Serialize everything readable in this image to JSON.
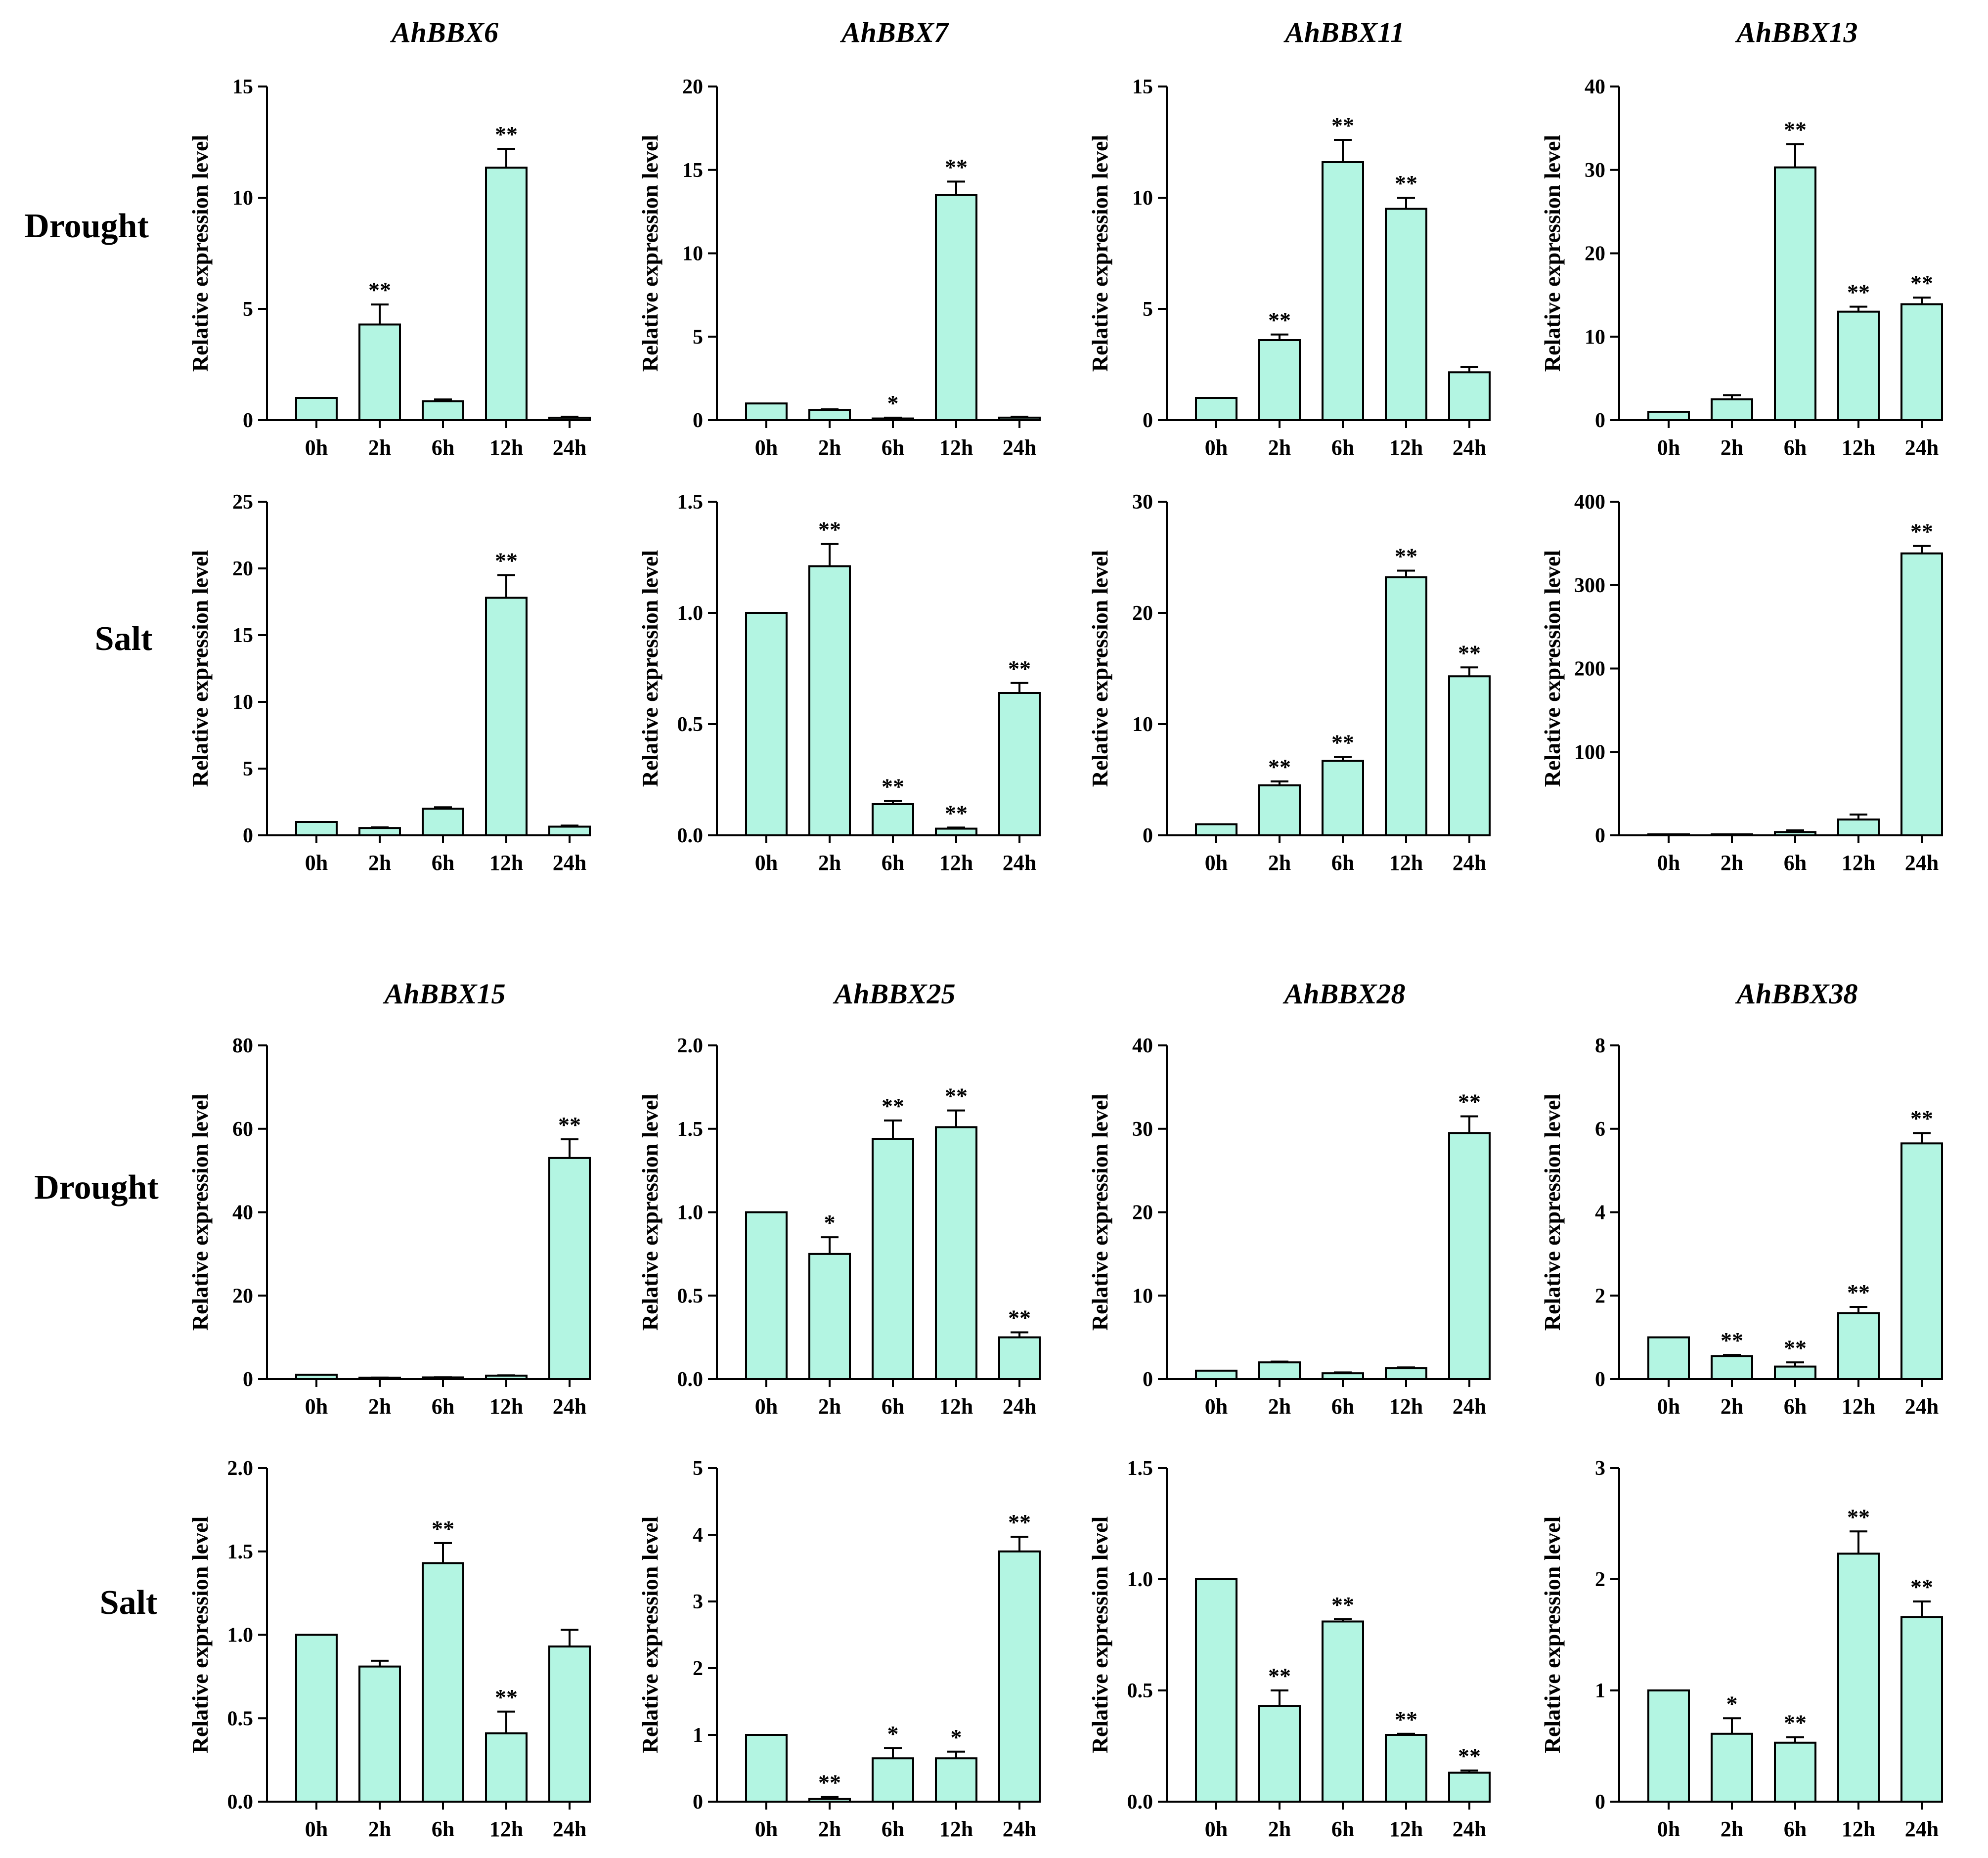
{
  "style": {
    "bar_color": "#b3f5e2",
    "ink_color": "#000000"
  },
  "conditions": [
    "Drought",
    "Salt"
  ],
  "chart_data": [
    {
      "type": "bar",
      "gene": "AhBBX6",
      "condition": "Drought",
      "ylabel": "Relative expression level",
      "categories": [
        "0h",
        "2h",
        "6h",
        "12h",
        "24h"
      ],
      "values": [
        1.0,
        4.3,
        0.85,
        11.35,
        0.1
      ],
      "errors": [
        0,
        0.9,
        0.08,
        0.85,
        0.05
      ],
      "significance": [
        "",
        "**",
        "",
        "**",
        ""
      ],
      "ylim": [
        0,
        15
      ],
      "yticks": [
        0,
        5,
        10,
        15
      ],
      "ytick_labels": [
        "0",
        "5",
        "10",
        "15"
      ]
    },
    {
      "type": "bar",
      "gene": "AhBBX7",
      "condition": "Drought",
      "ylabel": "Relative expression level",
      "categories": [
        "0h",
        "2h",
        "6h",
        "12h",
        "24h"
      ],
      "values": [
        1.0,
        0.6,
        0.1,
        13.5,
        0.15
      ],
      "errors": [
        0,
        0.05,
        0.05,
        0.8,
        0.05
      ],
      "significance": [
        "",
        "",
        "*",
        "**",
        ""
      ],
      "ylim": [
        0,
        20
      ],
      "yticks": [
        0,
        5,
        10,
        15,
        20
      ],
      "ytick_labels": [
        "0",
        "5",
        "10",
        "15",
        "20"
      ]
    },
    {
      "type": "bar",
      "gene": "AhBBX11",
      "condition": "Drought",
      "ylabel": "Relative expression level",
      "categories": [
        "0h",
        "2h",
        "6h",
        "12h",
        "24h"
      ],
      "values": [
        1.0,
        3.6,
        11.6,
        9.5,
        2.15
      ],
      "errors": [
        0,
        0.25,
        1.0,
        0.5,
        0.25
      ],
      "significance": [
        "",
        "**",
        "**",
        "**",
        ""
      ],
      "ylim": [
        0,
        15
      ],
      "yticks": [
        0,
        5,
        10,
        15
      ],
      "ytick_labels": [
        "0",
        "5",
        "10",
        "15"
      ]
    },
    {
      "type": "bar",
      "gene": "AhBBX13",
      "condition": "Drought",
      "ylabel": "Relative expression level",
      "categories": [
        "0h",
        "2h",
        "6h",
        "12h",
        "24h"
      ],
      "values": [
        1.0,
        2.5,
        30.3,
        13.0,
        13.9
      ],
      "errors": [
        0,
        0.5,
        2.8,
        0.6,
        0.8
      ],
      "significance": [
        "",
        "",
        "**",
        "**",
        "**"
      ],
      "ylim": [
        0,
        40
      ],
      "yticks": [
        0,
        10,
        20,
        30,
        40
      ],
      "ytick_labels": [
        "0",
        "10",
        "20",
        "30",
        "40"
      ]
    },
    {
      "type": "bar",
      "gene": "AhBBX6",
      "condition": "Salt",
      "ylabel": "Relative expression level",
      "categories": [
        "0h",
        "2h",
        "6h",
        "12h",
        "24h"
      ],
      "values": [
        1.0,
        0.55,
        2.0,
        17.8,
        0.65
      ],
      "errors": [
        0,
        0.05,
        0.1,
        1.7,
        0.08
      ],
      "significance": [
        "",
        "",
        "",
        "**",
        ""
      ],
      "ylim": [
        0,
        25
      ],
      "yticks": [
        0,
        5,
        10,
        15,
        20,
        25
      ],
      "ytick_labels": [
        "0",
        "5",
        "10",
        "15",
        "20",
        "25"
      ]
    },
    {
      "type": "bar",
      "gene": "AhBBX7",
      "condition": "Salt",
      "ylabel": "Relative expression level",
      "categories": [
        "0h",
        "2h",
        "6h",
        "12h",
        "24h"
      ],
      "values": [
        1.0,
        1.21,
        0.14,
        0.03,
        0.64
      ],
      "errors": [
        0,
        0.1,
        0.015,
        0.005,
        0.045
      ],
      "significance": [
        "",
        "**",
        "**",
        "**",
        "**"
      ],
      "ylim": [
        0,
        1.5
      ],
      "yticks": [
        0,
        0.5,
        1.0,
        1.5
      ],
      "ytick_labels": [
        "0.0",
        "0.5",
        "1.0",
        "1.5"
      ]
    },
    {
      "type": "bar",
      "gene": "AhBBX11",
      "condition": "Salt",
      "ylabel": "Relative expression level",
      "categories": [
        "0h",
        "2h",
        "6h",
        "12h",
        "24h"
      ],
      "values": [
        1.0,
        4.5,
        6.7,
        23.2,
        14.3
      ],
      "errors": [
        0,
        0.35,
        0.35,
        0.6,
        0.8
      ],
      "significance": [
        "",
        "**",
        "**",
        "**",
        "**"
      ],
      "ylim": [
        0,
        30
      ],
      "yticks": [
        0,
        10,
        20,
        30
      ],
      "ytick_labels": [
        "0",
        "10",
        "20",
        "30"
      ]
    },
    {
      "type": "bar",
      "gene": "AhBBX13",
      "condition": "Salt",
      "ylabel": "Relative expression level",
      "categories": [
        "0h",
        "2h",
        "6h",
        "12h",
        "24h"
      ],
      "values": [
        1.0,
        0.5,
        4.0,
        19.0,
        338.0
      ],
      "errors": [
        0,
        0.1,
        2.0,
        6.0,
        9.0
      ],
      "significance": [
        "",
        "",
        "",
        "",
        "**"
      ],
      "ylim": [
        0,
        400
      ],
      "yticks": [
        0,
        100,
        200,
        300,
        400
      ],
      "ytick_labels": [
        "0",
        "100",
        "200",
        "300",
        "400"
      ]
    },
    {
      "type": "bar",
      "gene": "AhBBX15",
      "condition": "Drought",
      "ylabel": "Relative expression level",
      "categories": [
        "0h",
        "2h",
        "6h",
        "12h",
        "24h"
      ],
      "values": [
        1.0,
        0.3,
        0.4,
        0.8,
        53.0
      ],
      "errors": [
        0,
        0.05,
        0.05,
        0.1,
        4.5
      ],
      "significance": [
        "",
        "",
        "",
        "",
        "**"
      ],
      "ylim": [
        0,
        80
      ],
      "yticks": [
        0,
        20,
        40,
        60,
        80
      ],
      "ytick_labels": [
        "0",
        "20",
        "40",
        "60",
        "80"
      ]
    },
    {
      "type": "bar",
      "gene": "AhBBX25",
      "condition": "Drought",
      "ylabel": "Relative expression level",
      "categories": [
        "0h",
        "2h",
        "6h",
        "12h",
        "24h"
      ],
      "values": [
        1.0,
        0.75,
        1.44,
        1.51,
        0.25
      ],
      "errors": [
        0,
        0.1,
        0.11,
        0.1,
        0.03
      ],
      "significance": [
        "",
        "*",
        "**",
        "**",
        "**"
      ],
      "ylim": [
        0,
        2.0
      ],
      "yticks": [
        0,
        0.5,
        1.0,
        1.5,
        2.0
      ],
      "ytick_labels": [
        "0.0",
        "0.5",
        "1.0",
        "1.5",
        "2.0"
      ]
    },
    {
      "type": "bar",
      "gene": "AhBBX28",
      "condition": "Drought",
      "ylabel": "Relative expression level",
      "categories": [
        "0h",
        "2h",
        "6h",
        "12h",
        "24h"
      ],
      "values": [
        1.0,
        2.0,
        0.7,
        1.3,
        29.5
      ],
      "errors": [
        0,
        0.1,
        0.1,
        0.1,
        2.0
      ],
      "significance": [
        "",
        "",
        "",
        "",
        "**"
      ],
      "ylim": [
        0,
        40
      ],
      "yticks": [
        0,
        10,
        20,
        30,
        40
      ],
      "ytick_labels": [
        "0",
        "10",
        "20",
        "30",
        "40"
      ]
    },
    {
      "type": "bar",
      "gene": "AhBBX38",
      "condition": "Drought",
      "ylabel": "Relative expression level",
      "categories": [
        "0h",
        "2h",
        "6h",
        "12h",
        "24h"
      ],
      "values": [
        1.0,
        0.55,
        0.3,
        1.58,
        5.65
      ],
      "errors": [
        0,
        0.03,
        0.1,
        0.15,
        0.25
      ],
      "significance": [
        "",
        "**",
        "**",
        "**",
        "**"
      ],
      "ylim": [
        0,
        8
      ],
      "yticks": [
        0,
        2,
        4,
        6,
        8
      ],
      "ytick_labels": [
        "0",
        "2",
        "4",
        "6",
        "8"
      ]
    },
    {
      "type": "bar",
      "gene": "AhBBX15",
      "condition": "Salt",
      "ylabel": "Relative expression level",
      "categories": [
        "0h",
        "2h",
        "6h",
        "12h",
        "24h"
      ],
      "values": [
        1.0,
        0.81,
        1.43,
        0.41,
        0.93
      ],
      "errors": [
        0,
        0.035,
        0.12,
        0.13,
        0.1
      ],
      "significance": [
        "",
        "",
        "**",
        "**",
        ""
      ],
      "ylim": [
        0,
        2.0
      ],
      "yticks": [
        0,
        0.5,
        1.0,
        1.5,
        2.0
      ],
      "ytick_labels": [
        "0.0",
        "0.5",
        "1.0",
        "1.5",
        "2.0"
      ]
    },
    {
      "type": "bar",
      "gene": "AhBBX25",
      "condition": "Salt",
      "ylabel": "Relative expression level",
      "categories": [
        "0h",
        "2h",
        "6h",
        "12h",
        "24h"
      ],
      "values": [
        1.0,
        0.04,
        0.65,
        0.65,
        3.75
      ],
      "errors": [
        0,
        0.03,
        0.15,
        0.1,
        0.22
      ],
      "significance": [
        "",
        "**",
        "*",
        "*",
        "**"
      ],
      "ylim": [
        0,
        5
      ],
      "yticks": [
        0,
        1,
        2,
        3,
        4,
        5
      ],
      "ytick_labels": [
        "0",
        "1",
        "2",
        "3",
        "4",
        "5"
      ]
    },
    {
      "type": "bar",
      "gene": "AhBBX28",
      "condition": "Salt",
      "ylabel": "Relative expression level",
      "categories": [
        "0h",
        "2h",
        "6h",
        "12h",
        "24h"
      ],
      "values": [
        1.0,
        0.43,
        0.81,
        0.3,
        0.13
      ],
      "errors": [
        0,
        0.07,
        0.01,
        0.005,
        0.01
      ],
      "significance": [
        "",
        "**",
        "**",
        "**",
        "**"
      ],
      "ylim": [
        0,
        1.5
      ],
      "yticks": [
        0,
        0.5,
        1.0,
        1.5
      ],
      "ytick_labels": [
        "0.0",
        "0.5",
        "1.0",
        "1.5"
      ]
    },
    {
      "type": "bar",
      "gene": "AhBBX38",
      "condition": "Salt",
      "ylabel": "Relative expression level",
      "categories": [
        "0h",
        "2h",
        "6h",
        "12h",
        "24h"
      ],
      "values": [
        1.0,
        0.61,
        0.53,
        2.23,
        1.66
      ],
      "errors": [
        0,
        0.14,
        0.05,
        0.2,
        0.14
      ],
      "significance": [
        "",
        "*",
        "**",
        "**",
        "**"
      ],
      "ylim": [
        0,
        3
      ],
      "yticks": [
        0,
        1,
        2,
        3
      ],
      "ytick_labels": [
        "0",
        "1",
        "2",
        "3"
      ]
    }
  ]
}
